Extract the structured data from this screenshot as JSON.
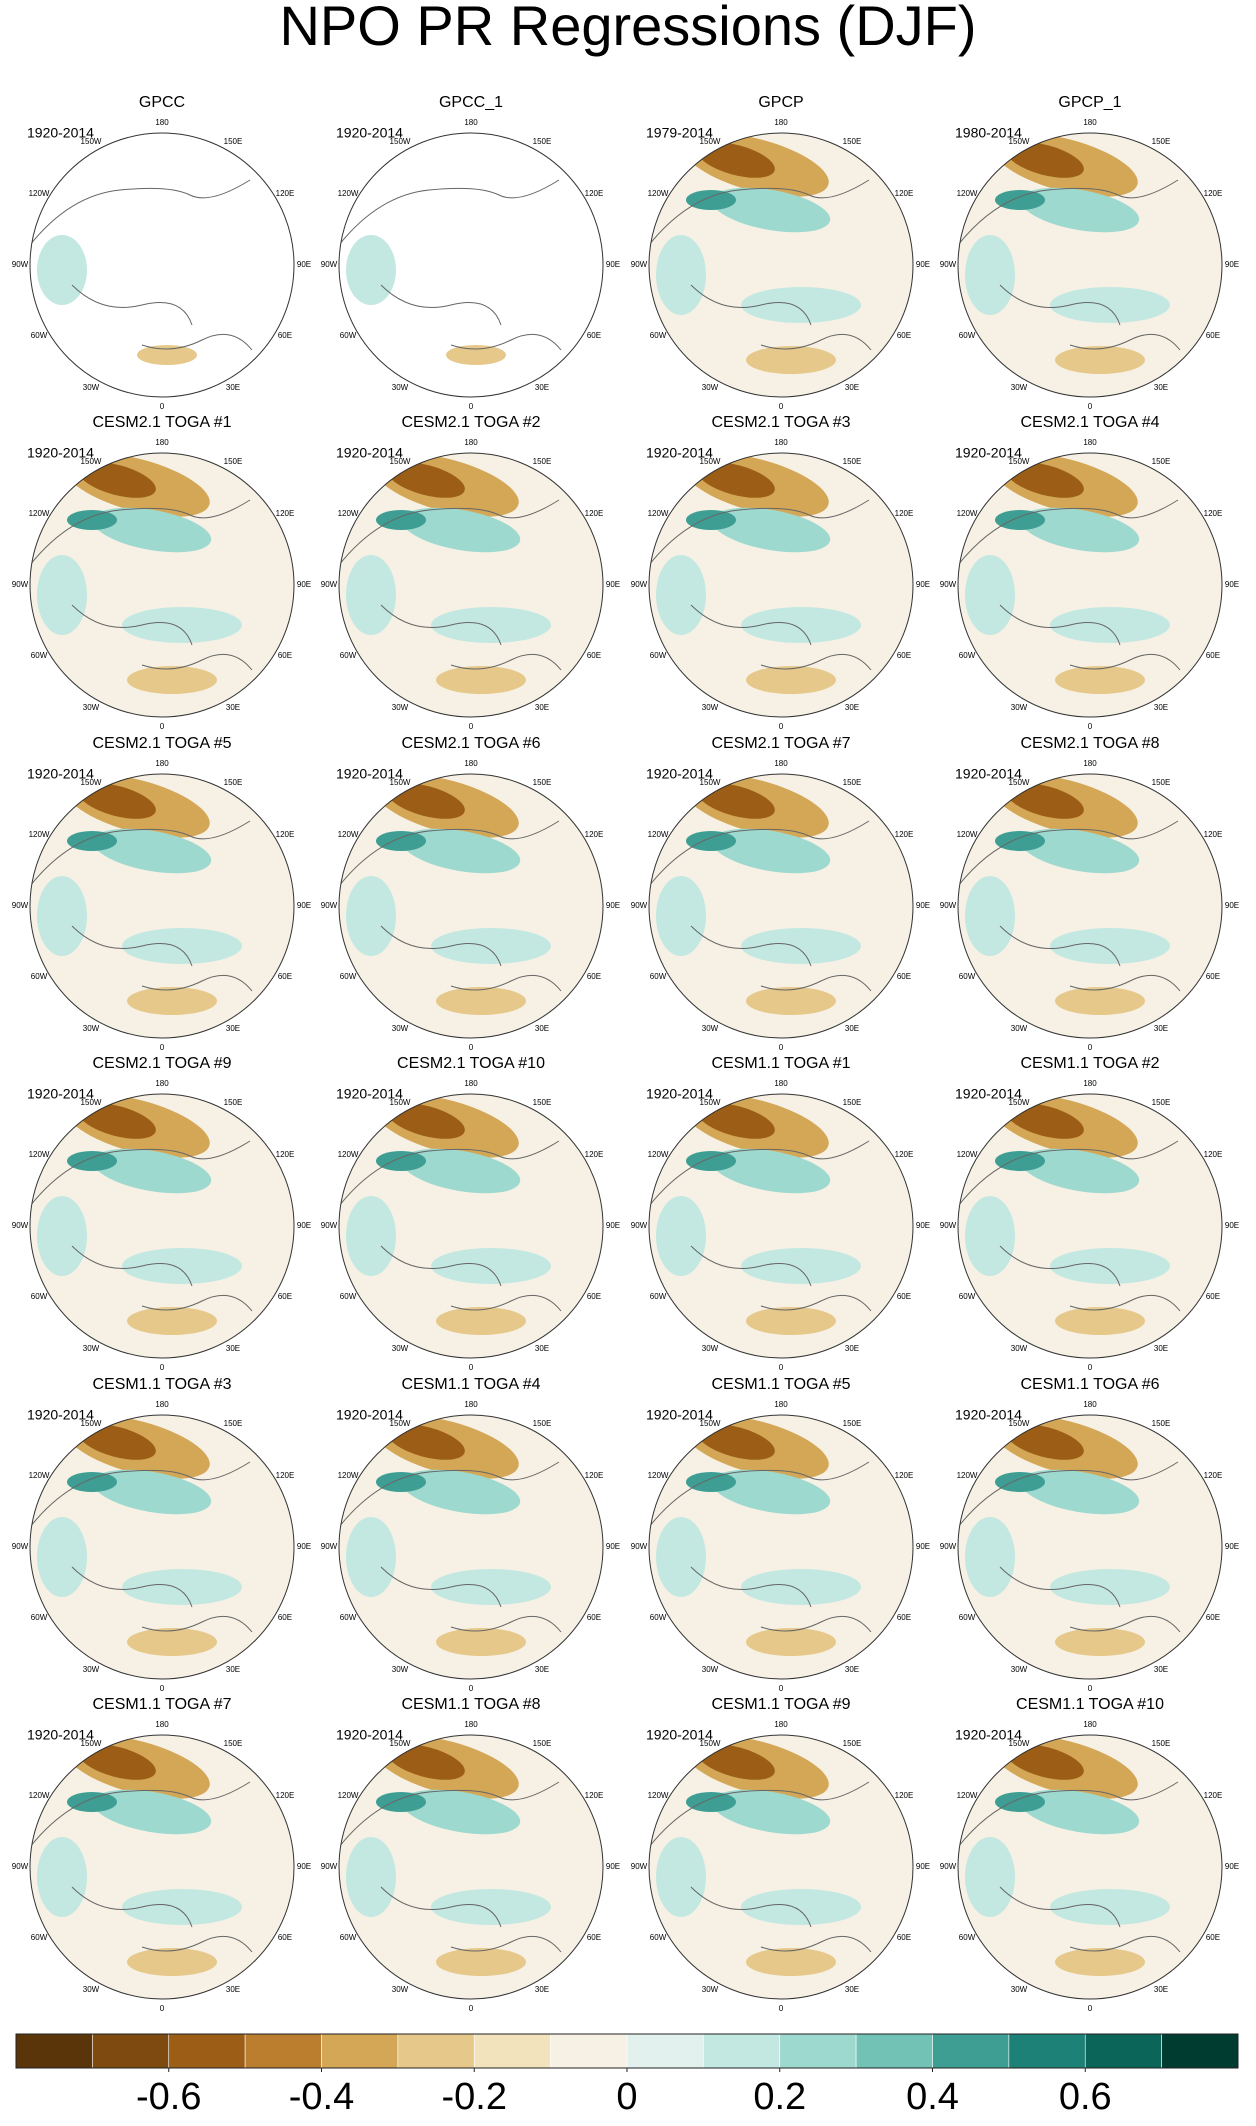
{
  "title": "NPO PR Regressions (DJF)",
  "panels": [
    {
      "title": "GPCC",
      "period": "1920-2014"
    },
    {
      "title": "GPCC_1",
      "period": "1920-2014"
    },
    {
      "title": "GPCP",
      "period": "1979-2014"
    },
    {
      "title": "GPCP_1",
      "period": "1980-2014"
    },
    {
      "title": "CESM2.1 TOGA #1",
      "period": "1920-2014"
    },
    {
      "title": "CESM2.1 TOGA #2",
      "period": "1920-2014"
    },
    {
      "title": "CESM2.1 TOGA #3",
      "period": "1920-2014"
    },
    {
      "title": "CESM2.1 TOGA #4",
      "period": "1920-2014"
    },
    {
      "title": "CESM2.1 TOGA #5",
      "period": "1920-2014"
    },
    {
      "title": "CESM2.1 TOGA #6",
      "period": "1920-2014"
    },
    {
      "title": "CESM2.1 TOGA #7",
      "period": "1920-2014"
    },
    {
      "title": "CESM2.1 TOGA #8",
      "period": "1920-2014"
    },
    {
      "title": "CESM2.1 TOGA #9",
      "period": "1920-2014"
    },
    {
      "title": "CESM2.1 TOGA #10",
      "period": "1920-2014"
    },
    {
      "title": "CESM1.1 TOGA #1",
      "period": "1920-2014"
    },
    {
      "title": "CESM1.1 TOGA #2",
      "period": "1920-2014"
    },
    {
      "title": "CESM1.1 TOGA #3",
      "period": "1920-2014"
    },
    {
      "title": "CESM1.1 TOGA #4",
      "period": "1920-2014"
    },
    {
      "title": "CESM1.1 TOGA #5",
      "period": "1920-2014"
    },
    {
      "title": "CESM1.1 TOGA #6",
      "period": "1920-2014"
    },
    {
      "title": "CESM1.1 TOGA #7",
      "period": "1920-2014"
    },
    {
      "title": "CESM1.1 TOGA #8",
      "period": "1920-2014"
    },
    {
      "title": "CESM1.1 TOGA #9",
      "period": "1920-2014"
    },
    {
      "title": "CESM1.1 TOGA #10",
      "period": "1920-2014"
    }
  ],
  "lon_labels": [
    "180",
    "150E",
    "120E",
    "90E",
    "60E",
    "30E",
    "0",
    "30W",
    "60W",
    "90W",
    "120W",
    "150W"
  ],
  "colorbar": {
    "lim": [
      -0.8,
      0.8
    ],
    "ticks": [
      -0.6,
      -0.4,
      -0.2,
      0,
      0.2,
      0.4,
      0.6
    ],
    "colors": [
      "#5a3509",
      "#7f4a10",
      "#9c5e16",
      "#bb7e2e",
      "#d4a757",
      "#e6c98a",
      "#f3e3bd",
      "#f6f1e4",
      "#e3f1ee",
      "#c3e8e2",
      "#9ed9cf",
      "#72c2b5",
      "#3f9e93",
      "#1d8177",
      "#0b6558",
      "#003c30"
    ]
  }
}
